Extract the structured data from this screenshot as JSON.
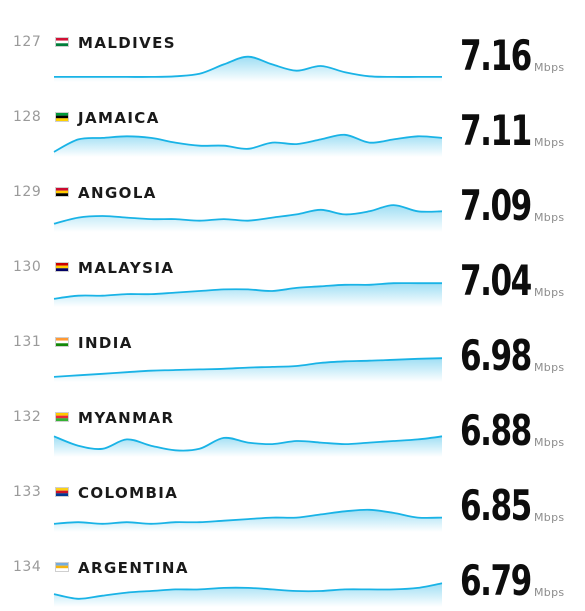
{
  "chart_data": {
    "type": "line",
    "unit": "Mbps",
    "rows": [
      {
        "rank": "127",
        "country": "MALDIVES",
        "speed": "7.16",
        "flag": [
          "#d21034",
          "#007e3a",
          "#ffffff"
        ],
        "trend": [
          1,
          1,
          1,
          1,
          1,
          1.2,
          2,
          5,
          7.5,
          5,
          3,
          4.5,
          2.5,
          1.2,
          1,
          1,
          1
        ]
      },
      {
        "rank": "128",
        "country": "JAMAICA",
        "speed": "7.11",
        "flag": [
          "#009b3a",
          "#fed100",
          "#000000"
        ],
        "trend": [
          1,
          5,
          5.5,
          6,
          5.5,
          4,
          3,
          3,
          2,
          4,
          3.5,
          5,
          6.5,
          4,
          5,
          6,
          5.5
        ]
      },
      {
        "rank": "129",
        "country": "ANGOLA",
        "speed": "7.09",
        "flag": [
          "#cc092f",
          "#000000",
          "#ffcb00"
        ],
        "trend": [
          2,
          4,
          4.5,
          4,
          3.5,
          3.5,
          3,
          3.5,
          3,
          4,
          5,
          6.5,
          5,
          6,
          8,
          6,
          6
        ]
      },
      {
        "rank": "130",
        "country": "MALAYSIA",
        "speed": "7.04",
        "flag": [
          "#cc0001",
          "#010066",
          "#ffcc00"
        ],
        "trend": [
          2,
          3,
          3,
          3.5,
          3.5,
          4,
          4.5,
          5,
          5,
          4.5,
          5.5,
          6,
          6.5,
          6.5,
          7,
          7,
          7
        ]
      },
      {
        "rank": "131",
        "country": "INDIA",
        "speed": "6.98",
        "flag": [
          "#ff9933",
          "#138808",
          "#ffffff"
        ],
        "trend": [
          1,
          1.5,
          2,
          2.5,
          3,
          3.2,
          3.4,
          3.6,
          4,
          4.2,
          4.5,
          5.5,
          6,
          6.2,
          6.5,
          6.8,
          7
        ]
      },
      {
        "rank": "132",
        "country": "MYANMAR",
        "speed": "6.88",
        "flag": [
          "#fecb00",
          "#34b233",
          "#ea2839"
        ],
        "trend": [
          6,
          3,
          2,
          5,
          3,
          1.5,
          2,
          5.5,
          4,
          3.5,
          4.5,
          4,
          3.5,
          4,
          4.5,
          5,
          6
        ]
      },
      {
        "rank": "133",
        "country": "COLOMBIA",
        "speed": "6.85",
        "flag": [
          "#fcd116",
          "#003893",
          "#ce1126"
        ],
        "trend": [
          2,
          2.5,
          2,
          2.5,
          2,
          2.5,
          2.5,
          3,
          3.5,
          4,
          4,
          5,
          6,
          6.5,
          5.5,
          4,
          4
        ]
      },
      {
        "rank": "134",
        "country": "ARGENTINA",
        "speed": "6.79",
        "flag": [
          "#74acdf",
          "#ffffff",
          "#f6b40e"
        ],
        "trend": [
          3.5,
          2,
          3,
          4,
          4.5,
          5,
          5,
          5.5,
          5.5,
          5,
          4.5,
          4.5,
          5,
          5,
          5,
          5.5,
          7
        ]
      }
    ]
  }
}
